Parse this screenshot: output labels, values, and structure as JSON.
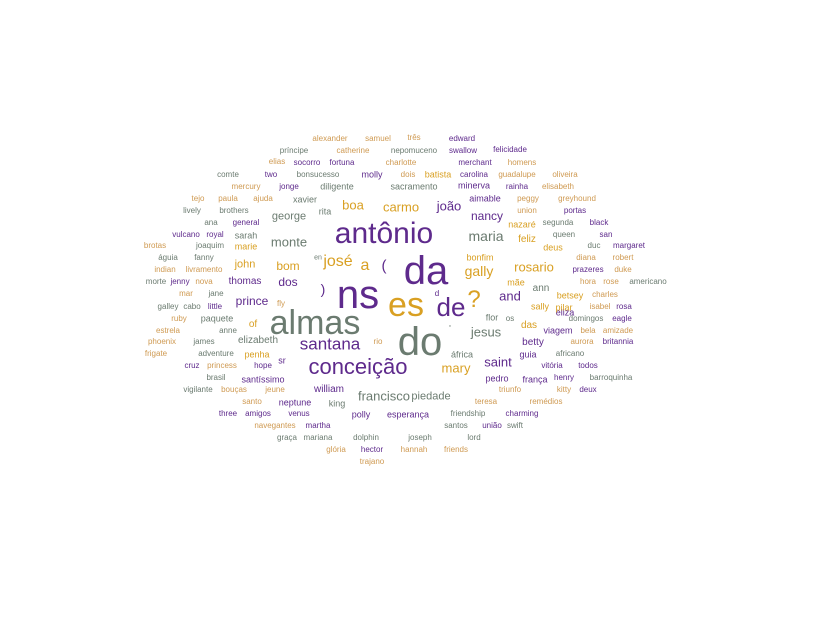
{
  "palette": {
    "gray": "#6b7b70",
    "purple": "#5e2a8c",
    "gold": "#d9a023",
    "tan": "#cf9a52"
  },
  "words": [
    {
      "text": "ns",
      "color": "purple"
    },
    {
      "text": "da",
      "color": "purple"
    },
    {
      "text": "do",
      "color": "gray"
    },
    {
      "text": "almas",
      "color": "gray"
    },
    {
      "text": "es",
      "color": "gold"
    },
    {
      "text": "antônio",
      "color": "purple"
    },
    {
      "text": "de",
      "color": "purple"
    },
    {
      "text": "?",
      "color": "gold"
    },
    {
      "text": "conceição",
      "color": "purple"
    },
    {
      "text": "santana",
      "color": "purple"
    },
    {
      "text": "josé",
      "color": "gold"
    },
    {
      "text": "a",
      "color": "gold"
    },
    {
      "text": "(",
      "color": "purple"
    },
    {
      "text": ")",
      "color": "purple"
    },
    {
      "text": "maria",
      "color": "gray"
    },
    {
      "text": "rosario",
      "color": "gold"
    },
    {
      "text": "gally",
      "color": "gold"
    },
    {
      "text": "jesus",
      "color": "gray"
    },
    {
      "text": "francisco",
      "color": "gray"
    },
    {
      "text": "mary",
      "color": "gold"
    },
    {
      "text": "monte",
      "color": "gray"
    },
    {
      "text": "boa",
      "color": "gold"
    },
    {
      "text": "carmo",
      "color": "gold"
    },
    {
      "text": "joão",
      "color": "purple"
    },
    {
      "text": "and",
      "color": "purple"
    },
    {
      "text": "dos",
      "color": "purple"
    },
    {
      "text": "bom",
      "color": "gold"
    },
    {
      "text": "prince",
      "color": "purple"
    },
    {
      "text": "saint",
      "color": "purple"
    },
    {
      "text": "nancy",
      "color": "purple"
    },
    {
      "text": "piedade",
      "color": "gray"
    },
    {
      "text": "george",
      "color": "gray"
    },
    {
      "text": "john",
      "color": "gold"
    },
    {
      "text": "william",
      "color": "purple"
    },
    {
      "text": "feliz",
      "color": "gold"
    },
    {
      "text": "ann",
      "color": "gray"
    },
    {
      "text": "betty",
      "color": "purple"
    },
    {
      "text": "elizabeth",
      "color": "gray"
    },
    {
      "text": "thomas",
      "color": "purple"
    },
    {
      "text": "of",
      "color": "gold"
    },
    {
      "text": "das",
      "color": "gold"
    },
    {
      "text": "aimable",
      "color": "purple"
    },
    {
      "text": "bonfim",
      "color": "gold"
    },
    {
      "text": "esperança",
      "color": "purple"
    },
    {
      "text": "pedro",
      "color": "purple"
    },
    {
      "text": "frança",
      "color": "purple"
    },
    {
      "text": "penha",
      "color": "gold"
    },
    {
      "text": "santíssimo",
      "color": "purple"
    },
    {
      "text": "polly",
      "color": "purple"
    },
    {
      "text": "king",
      "color": "gray"
    },
    {
      "text": "sr",
      "color": "purple"
    },
    {
      "text": "áfrica",
      "color": "gray"
    },
    {
      "text": "guia",
      "color": "purple"
    },
    {
      "text": "viagem",
      "color": "purple"
    },
    {
      "text": "sacramento",
      "color": "gray"
    },
    {
      "text": "minerva",
      "color": "purple"
    },
    {
      "text": "xavier",
      "color": "gray"
    },
    {
      "text": "diligente",
      "color": "gray"
    },
    {
      "text": "molly",
      "color": "purple"
    },
    {
      "text": "batista",
      "color": "gold"
    },
    {
      "text": "nazaré",
      "color": "gold"
    },
    {
      "text": "deus",
      "color": "gold"
    },
    {
      "text": "eliza",
      "color": "purple"
    },
    {
      "text": "sarah",
      "color": "gray"
    },
    {
      "text": "marie",
      "color": "gold"
    },
    {
      "text": "mãe",
      "color": "gold"
    },
    {
      "text": "flor",
      "color": "gray"
    },
    {
      "text": "rita",
      "color": "gray"
    },
    {
      "text": "sally",
      "color": "gold"
    },
    {
      "text": "pilar",
      "color": "gold"
    },
    {
      "text": "betsey",
      "color": "gold"
    },
    {
      "text": "paquete",
      "color": "gray"
    },
    {
      "text": "neptune",
      "color": "purple"
    },
    {
      "text": "en",
      "color": "gray"
    },
    {
      "text": "d",
      "color": "purple"
    },
    {
      "text": "alexander",
      "color": "tan"
    },
    {
      "text": "samuel",
      "color": "tan"
    },
    {
      "text": "três",
      "color": "tan"
    },
    {
      "text": "edward",
      "color": "purple"
    },
    {
      "text": "príncipe",
      "color": "gray"
    },
    {
      "text": "catherine",
      "color": "tan"
    },
    {
      "text": "nepomuceno",
      "color": "gray"
    },
    {
      "text": "swallow",
      "color": "purple"
    },
    {
      "text": "felicidade",
      "color": "purple"
    },
    {
      "text": "elias",
      "color": "tan"
    },
    {
      "text": "socorro",
      "color": "purple"
    },
    {
      "text": "fortuna",
      "color": "purple"
    },
    {
      "text": "charlotte",
      "color": "tan"
    },
    {
      "text": "merchant",
      "color": "purple"
    },
    {
      "text": "homens",
      "color": "tan"
    },
    {
      "text": "comte",
      "color": "gray"
    },
    {
      "text": "two",
      "color": "purple"
    },
    {
      "text": "bonsucesso",
      "color": "gray"
    },
    {
      "text": "dois",
      "color": "tan"
    },
    {
      "text": "carolina",
      "color": "purple"
    },
    {
      "text": "guadalupe",
      "color": "tan"
    },
    {
      "text": "oliveira",
      "color": "tan"
    },
    {
      "text": "mercury",
      "color": "tan"
    },
    {
      "text": "jonge",
      "color": "purple"
    },
    {
      "text": "rainha",
      "color": "purple"
    },
    {
      "text": "elisabeth",
      "color": "tan"
    },
    {
      "text": "tejo",
      "color": "tan"
    },
    {
      "text": "paula",
      "color": "tan"
    },
    {
      "text": "ajuda",
      "color": "tan"
    },
    {
      "text": "peggy",
      "color": "tan"
    },
    {
      "text": "greyhound",
      "color": "tan"
    },
    {
      "text": "lively",
      "color": "gray"
    },
    {
      "text": "brothers",
      "color": "gray"
    },
    {
      "text": "union",
      "color": "tan"
    },
    {
      "text": "portas",
      "color": "purple"
    },
    {
      "text": "ana",
      "color": "gray"
    },
    {
      "text": "general",
      "color": "purple"
    },
    {
      "text": "segunda",
      "color": "gray"
    },
    {
      "text": "black",
      "color": "purple"
    },
    {
      "text": "vulcano",
      "color": "purple"
    },
    {
      "text": "royal",
      "color": "purple"
    },
    {
      "text": "queen",
      "color": "gray"
    },
    {
      "text": "san",
      "color": "purple"
    },
    {
      "text": "brotas",
      "color": "tan"
    },
    {
      "text": "joaquim",
      "color": "gray"
    },
    {
      "text": "duc",
      "color": "gray"
    },
    {
      "text": "margaret",
      "color": "purple"
    },
    {
      "text": "águia",
      "color": "gray"
    },
    {
      "text": "fanny",
      "color": "gray"
    },
    {
      "text": "diana",
      "color": "tan"
    },
    {
      "text": "robert",
      "color": "tan"
    },
    {
      "text": "indian",
      "color": "tan"
    },
    {
      "text": "livramento",
      "color": "tan"
    },
    {
      "text": "prazeres",
      "color": "purple"
    },
    {
      "text": "duke",
      "color": "tan"
    },
    {
      "text": "morte",
      "color": "gray"
    },
    {
      "text": "jenny",
      "color": "purple"
    },
    {
      "text": "nova",
      "color": "tan"
    },
    {
      "text": "hora",
      "color": "tan"
    },
    {
      "text": "rose",
      "color": "tan"
    },
    {
      "text": "americano",
      "color": "gray"
    },
    {
      "text": "mar",
      "color": "tan"
    },
    {
      "text": "jane",
      "color": "gray"
    },
    {
      "text": "charles",
      "color": "tan"
    },
    {
      "text": "fly",
      "color": "tan"
    },
    {
      "text": "galley",
      "color": "gray"
    },
    {
      "text": "cabo",
      "color": "gray"
    },
    {
      "text": "little",
      "color": "purple"
    },
    {
      "text": "isabel",
      "color": "tan"
    },
    {
      "text": "rosa",
      "color": "purple"
    },
    {
      "text": "ruby",
      "color": "tan"
    },
    {
      "text": "os",
      "color": "gray"
    },
    {
      "text": "domingos",
      "color": "gray"
    },
    {
      "text": "eagle",
      "color": "purple"
    },
    {
      "text": "estrela",
      "color": "tan"
    },
    {
      "text": "anne",
      "color": "gray"
    },
    {
      "text": "bela",
      "color": "tan"
    },
    {
      "text": "amizade",
      "color": "tan"
    },
    {
      "text": "phoenix",
      "color": "tan"
    },
    {
      "text": "james",
      "color": "gray"
    },
    {
      "text": "aurora",
      "color": "tan"
    },
    {
      "text": "britannia",
      "color": "purple"
    },
    {
      "text": "frigate",
      "color": "tan"
    },
    {
      "text": "adventure",
      "color": "gray"
    },
    {
      "text": "africano",
      "color": "gray"
    },
    {
      "text": "cruz",
      "color": "purple"
    },
    {
      "text": "princess",
      "color": "tan"
    },
    {
      "text": "hope",
      "color": "purple"
    },
    {
      "text": "vitória",
      "color": "purple"
    },
    {
      "text": "todos",
      "color": "purple"
    },
    {
      "text": "brasil",
      "color": "gray"
    },
    {
      "text": "henry",
      "color": "purple"
    },
    {
      "text": "barroquinha",
      "color": "gray"
    },
    {
      "text": "vigilante",
      "color": "gray"
    },
    {
      "text": "bouças",
      "color": "tan"
    },
    {
      "text": "jeune",
      "color": "tan"
    },
    {
      "text": "triunfo",
      "color": "tan"
    },
    {
      "text": "kitty",
      "color": "tan"
    },
    {
      "text": "deux",
      "color": "purple"
    },
    {
      "text": "santo",
      "color": "tan"
    },
    {
      "text": "teresa",
      "color": "tan"
    },
    {
      "text": "remédios",
      "color": "tan"
    },
    {
      "text": "three",
      "color": "purple"
    },
    {
      "text": "amigos",
      "color": "purple"
    },
    {
      "text": "venus",
      "color": "purple"
    },
    {
      "text": "friendship",
      "color": "gray"
    },
    {
      "text": "charming",
      "color": "purple"
    },
    {
      "text": "navegantes",
      "color": "tan"
    },
    {
      "text": "martha",
      "color": "purple"
    },
    {
      "text": "santos",
      "color": "gray"
    },
    {
      "text": "união",
      "color": "purple"
    },
    {
      "text": "swift",
      "color": "gray"
    },
    {
      "text": "graça",
      "color": "gray"
    },
    {
      "text": "mariana",
      "color": "gray"
    },
    {
      "text": "dolphin",
      "color": "gray"
    },
    {
      "text": "joseph",
      "color": "gray"
    },
    {
      "text": "lord",
      "color": "gray"
    },
    {
      "text": "glória",
      "color": "tan"
    },
    {
      "text": "hector",
      "color": "purple"
    },
    {
      "text": "hannah",
      "color": "tan"
    },
    {
      "text": "friends",
      "color": "tan"
    },
    {
      "text": "trajano",
      "color": "tan"
    },
    {
      "text": "rio",
      "color": "tan"
    },
    {
      "text": "'",
      "color": "gray"
    }
  ]
}
